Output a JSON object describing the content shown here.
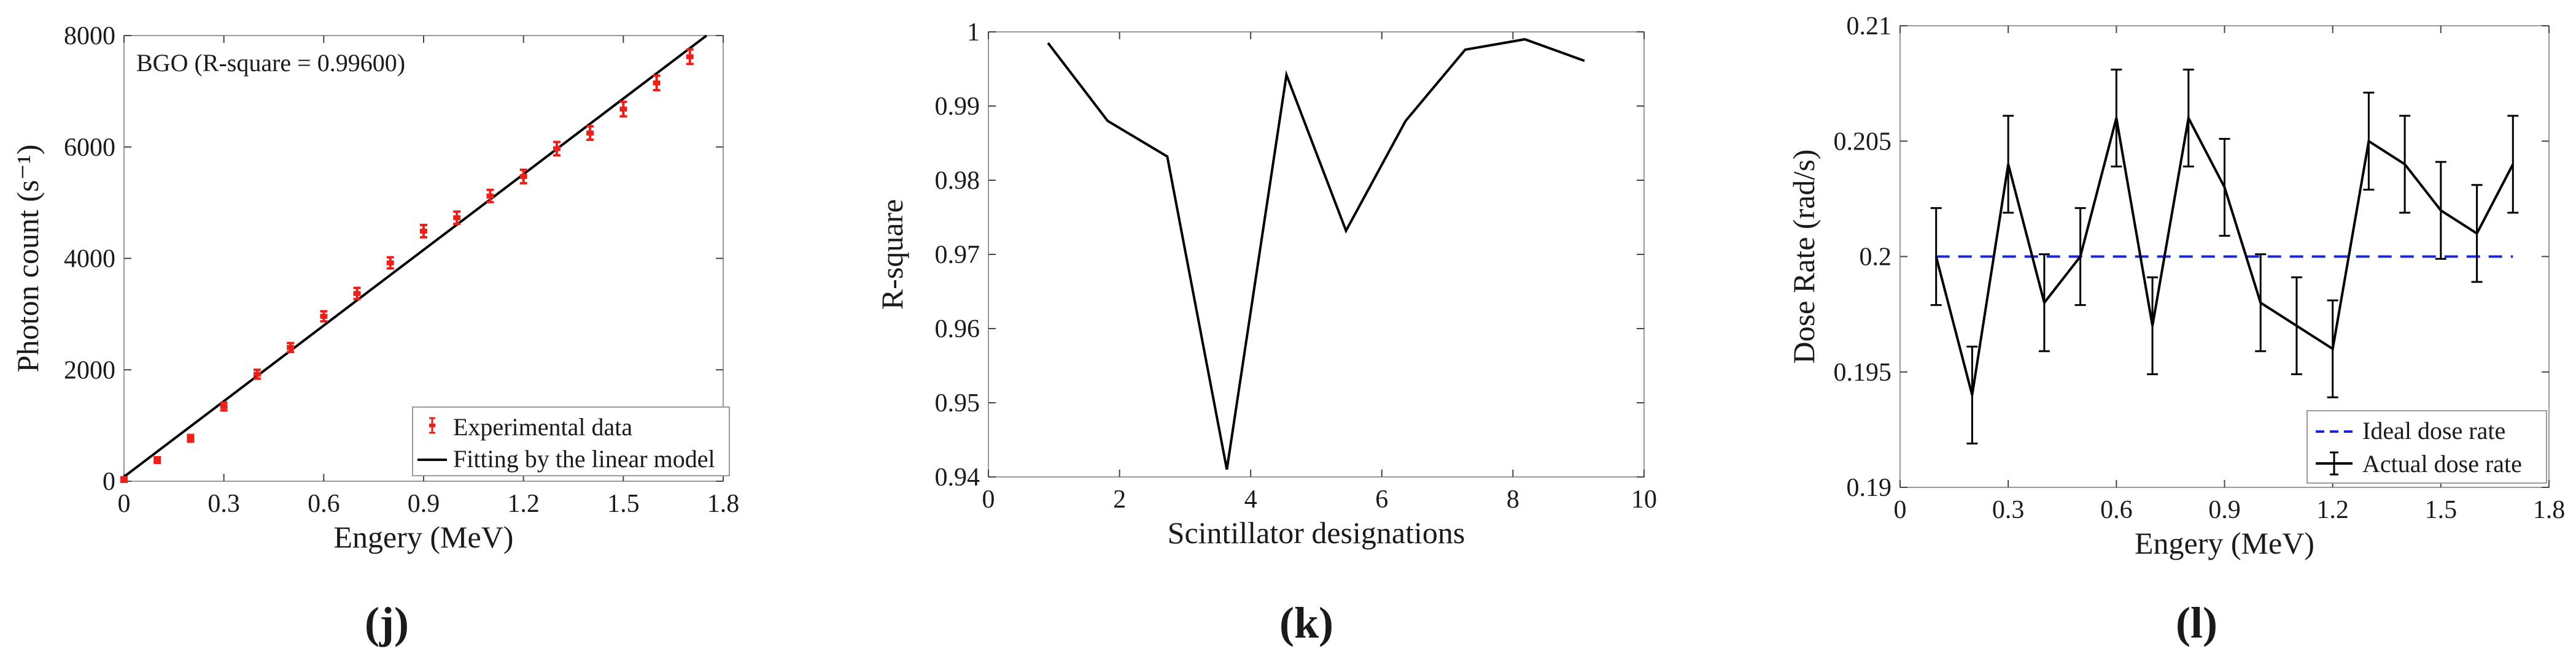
{
  "chart_data": [
    {
      "type": "scatter",
      "panel_label": "(j)",
      "annotation": "BGO (R-square = 0.99600)",
      "xlabel": "Engery (MeV)",
      "ylabel": "Photon count (s⁻¹)",
      "xlim": [
        0,
        1.8
      ],
      "ylim": [
        0,
        8000
      ],
      "xticks": [
        "0",
        "0.3",
        "0.6",
        "0.9",
        "1.2",
        "1.5",
        "1.8"
      ],
      "yticks": [
        "0",
        "2000",
        "4000",
        "6000",
        "8000"
      ],
      "legend_position": "bottom-right",
      "series": [
        {
          "name": "Experimental data",
          "color": "#e8221b",
          "x": [
            0,
            0.1,
            0.2,
            0.3,
            0.4,
            0.5,
            0.6,
            0.7,
            0.8,
            0.9,
            1.0,
            1.1,
            1.2,
            1.3,
            1.4,
            1.5,
            1.6,
            1.7
          ],
          "y": [
            30,
            380,
            770,
            1340,
            1920,
            2400,
            2960,
            3370,
            3920,
            4490,
            4730,
            5120,
            5470,
            5970,
            6250,
            6680,
            7150,
            7620
          ],
          "error": [
            40,
            50,
            60,
            70,
            80,
            80,
            90,
            100,
            100,
            110,
            110,
            110,
            120,
            120,
            120,
            130,
            130,
            130
          ]
        },
        {
          "name": "Fitting by the linear model",
          "color": "#000000",
          "x": [
            0,
            1.75
          ],
          "y": [
            80,
            8000
          ]
        }
      ]
    },
    {
      "type": "line",
      "panel_label": "(k)",
      "xlabel": "Scintillator designations",
      "ylabel": "R-square",
      "xlim": [
        0,
        11
      ],
      "ylim": [
        0.94,
        1
      ],
      "xticks": [
        "0",
        "2",
        "4",
        "6",
        "8",
        "10"
      ],
      "yticks": [
        "0.94",
        "0.95",
        "0.96",
        "0.97",
        "0.98",
        "0.99",
        "1"
      ],
      "series": [
        {
          "color": "#000000",
          "x": [
            1,
            2,
            3,
            4,
            5,
            6,
            7,
            8,
            9,
            10
          ],
          "y": [
            0.9985,
            0.988,
            0.9832,
            0.941,
            0.9942,
            0.9732,
            0.988,
            0.9976,
            0.999,
            0.9961
          ]
        }
      ]
    },
    {
      "type": "line",
      "panel_label": "(l)",
      "xlabel": "Engery (MeV)",
      "ylabel": "Dose Rate (rad/s)",
      "xlim": [
        0,
        1.8
      ],
      "ylim": [
        0.19,
        0.21
      ],
      "xticks": [
        "0",
        "0.3",
        "0.6",
        "0.9",
        "1.2",
        "1.5",
        "1.8"
      ],
      "yticks": [
        "0.19",
        "0.195",
        "0.2",
        "0.205",
        "0.21"
      ],
      "legend_position": "bottom-right",
      "series": [
        {
          "name": "Ideal dose rate",
          "color": "#1a24e0",
          "dashed": true,
          "x": [
            0.1,
            1.7
          ],
          "y": [
            0.2,
            0.2
          ]
        },
        {
          "name": "Actual dose rate",
          "color": "#000000",
          "x": [
            0.1,
            0.2,
            0.3,
            0.4,
            0.5,
            0.6,
            0.7,
            0.8,
            0.9,
            1.0,
            1.1,
            1.2,
            1.3,
            1.4,
            1.5,
            1.6,
            1.7
          ],
          "y": [
            0.2,
            0.194,
            0.204,
            0.198,
            0.2,
            0.206,
            0.197,
            0.206,
            0.203,
            0.198,
            0.197,
            0.196,
            0.205,
            0.204,
            0.202,
            0.201,
            0.204
          ],
          "error": [
            0.0021,
            0.0021,
            0.0021,
            0.0021,
            0.0021,
            0.0021,
            0.0021,
            0.0021,
            0.0021,
            0.0021,
            0.0021,
            0.0021,
            0.0021,
            0.0021,
            0.0021,
            0.0021,
            0.0021
          ]
        }
      ]
    }
  ]
}
